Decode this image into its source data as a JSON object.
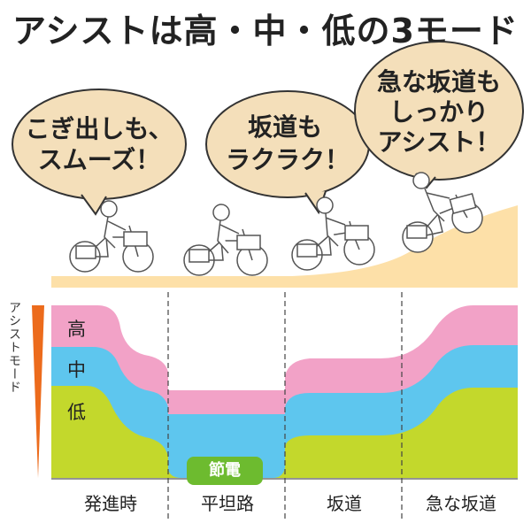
{
  "title": "アシストは高・中・低の3モード",
  "bubbles": [
    {
      "lines": [
        "こぎ出しも、",
        "スムーズ！"
      ]
    },
    {
      "lines": [
        "坂道も",
        "ラクラク！"
      ]
    },
    {
      "lines": [
        "急な坂道も",
        "しっかり",
        "アシスト！"
      ]
    }
  ],
  "axis_label": "アシストモード",
  "bands": {
    "high": "高",
    "mid": "中",
    "low": "低"
  },
  "eco_label": "節電",
  "phases": [
    "発進時",
    "平坦路",
    "坂道",
    "急な坂道"
  ],
  "colors": {
    "high": "#f2a2c7",
    "mid": "#5ec6ee",
    "low": "#c3d82c",
    "bubble": "#f4dfba",
    "ground": "#fde0a8",
    "eco": "#6dbb2f",
    "arrow": "#ec6b1c"
  }
}
